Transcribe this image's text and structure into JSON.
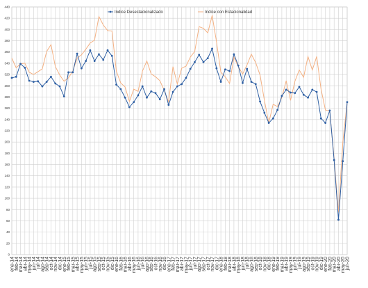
{
  "chart_data": {
    "type": "line",
    "categories": [
      "ene-14",
      "feb-14",
      "mar-14",
      "abr-14",
      "may-14",
      "jun-14",
      "jul-14",
      "ago-14",
      "sep-14",
      "oct-14",
      "nov-14",
      "dic-14",
      "ene-15",
      "feb-15",
      "mar-15",
      "abr-15",
      "may-15",
      "jun-15",
      "jul-15",
      "ago-15",
      "sep-15",
      "oct-15",
      "nov-15",
      "dic-15",
      "ene-16",
      "feb-16",
      "mar-16",
      "abr-16",
      "may-16",
      "jun-16",
      "jul-16",
      "ago-16",
      "sep-16",
      "oct-16",
      "nov-16",
      "dic-16",
      "ene-17",
      "feb-17",
      "mar-17",
      "abr-17",
      "may-17",
      "jun-17",
      "jul-17",
      "ago-17",
      "sep-17",
      "oct-17",
      "nov-17",
      "dic-17",
      "ene-18",
      "feb-18",
      "mar-18",
      "abr-18",
      "may-18",
      "jun-18",
      "jul-18",
      "ago-18",
      "sep-18",
      "oct-18",
      "nov-18",
      "dic-18",
      "ene-19",
      "feb-19",
      "mar-19",
      "abr-19",
      "may-19",
      "jun-19",
      "jul-19",
      "ago-19",
      "sep-19",
      "oct-19",
      "nov-19",
      "dic-19",
      "ene-20",
      "feb-20",
      "mar-20",
      "abr-20",
      "may-20",
      "jun-20"
    ],
    "series": [
      {
        "name": "Indice Desestacionalizado",
        "color": "#2e5fa3",
        "markers": true,
        "values": [
          314,
          316,
          339,
          332,
          309,
          307,
          308,
          299,
          307,
          316,
          304,
          299,
          281,
          324,
          324,
          357,
          331,
          344,
          363,
          344,
          356,
          346,
          363,
          353,
          302,
          294,
          279,
          262,
          271,
          283,
          299,
          279,
          290,
          287,
          276,
          294,
          266,
          289,
          299,
          303,
          314,
          330,
          342,
          355,
          342,
          349,
          366,
          331,
          307,
          329,
          326,
          356,
          336,
          305,
          330,
          307,
          303,
          272,
          252,
          234,
          242,
          257,
          282,
          293,
          288,
          287,
          298,
          284,
          279,
          293,
          289,
          242,
          234,
          256,
          168,
          62,
          166,
          271
        ]
      },
      {
        "name": "Indice con Estacionalidad",
        "color": "#f4b183",
        "markers": false,
        "values": [
          349,
          332,
          339,
          340,
          324,
          320,
          325,
          330,
          361,
          373,
          334,
          319,
          308,
          314,
          326,
          349,
          355,
          365,
          376,
          381,
          423,
          408,
          398,
          397,
          326,
          305,
          298,
          272,
          294,
          290,
          326,
          344,
          321,
          316,
          309,
          292,
          271,
          334,
          303,
          331,
          335,
          351,
          361,
          405,
          402,
          394,
          425,
          378,
          324,
          316,
          304,
          351,
          334,
          321,
          337,
          356,
          341,
          319,
          274,
          234,
          267,
          263,
          279,
          309,
          274,
          308,
          328,
          315,
          352,
          328,
          352,
          294,
          257,
          255,
          171,
          75,
          200,
          271
        ]
      }
    ],
    "ylim": [
      0,
      440
    ],
    "yticks": [
      0,
      20,
      40,
      60,
      80,
      100,
      120,
      140,
      160,
      180,
      200,
      220,
      240,
      260,
      280,
      300,
      320,
      340,
      360,
      380,
      400,
      420,
      440
    ],
    "grid": true
  }
}
